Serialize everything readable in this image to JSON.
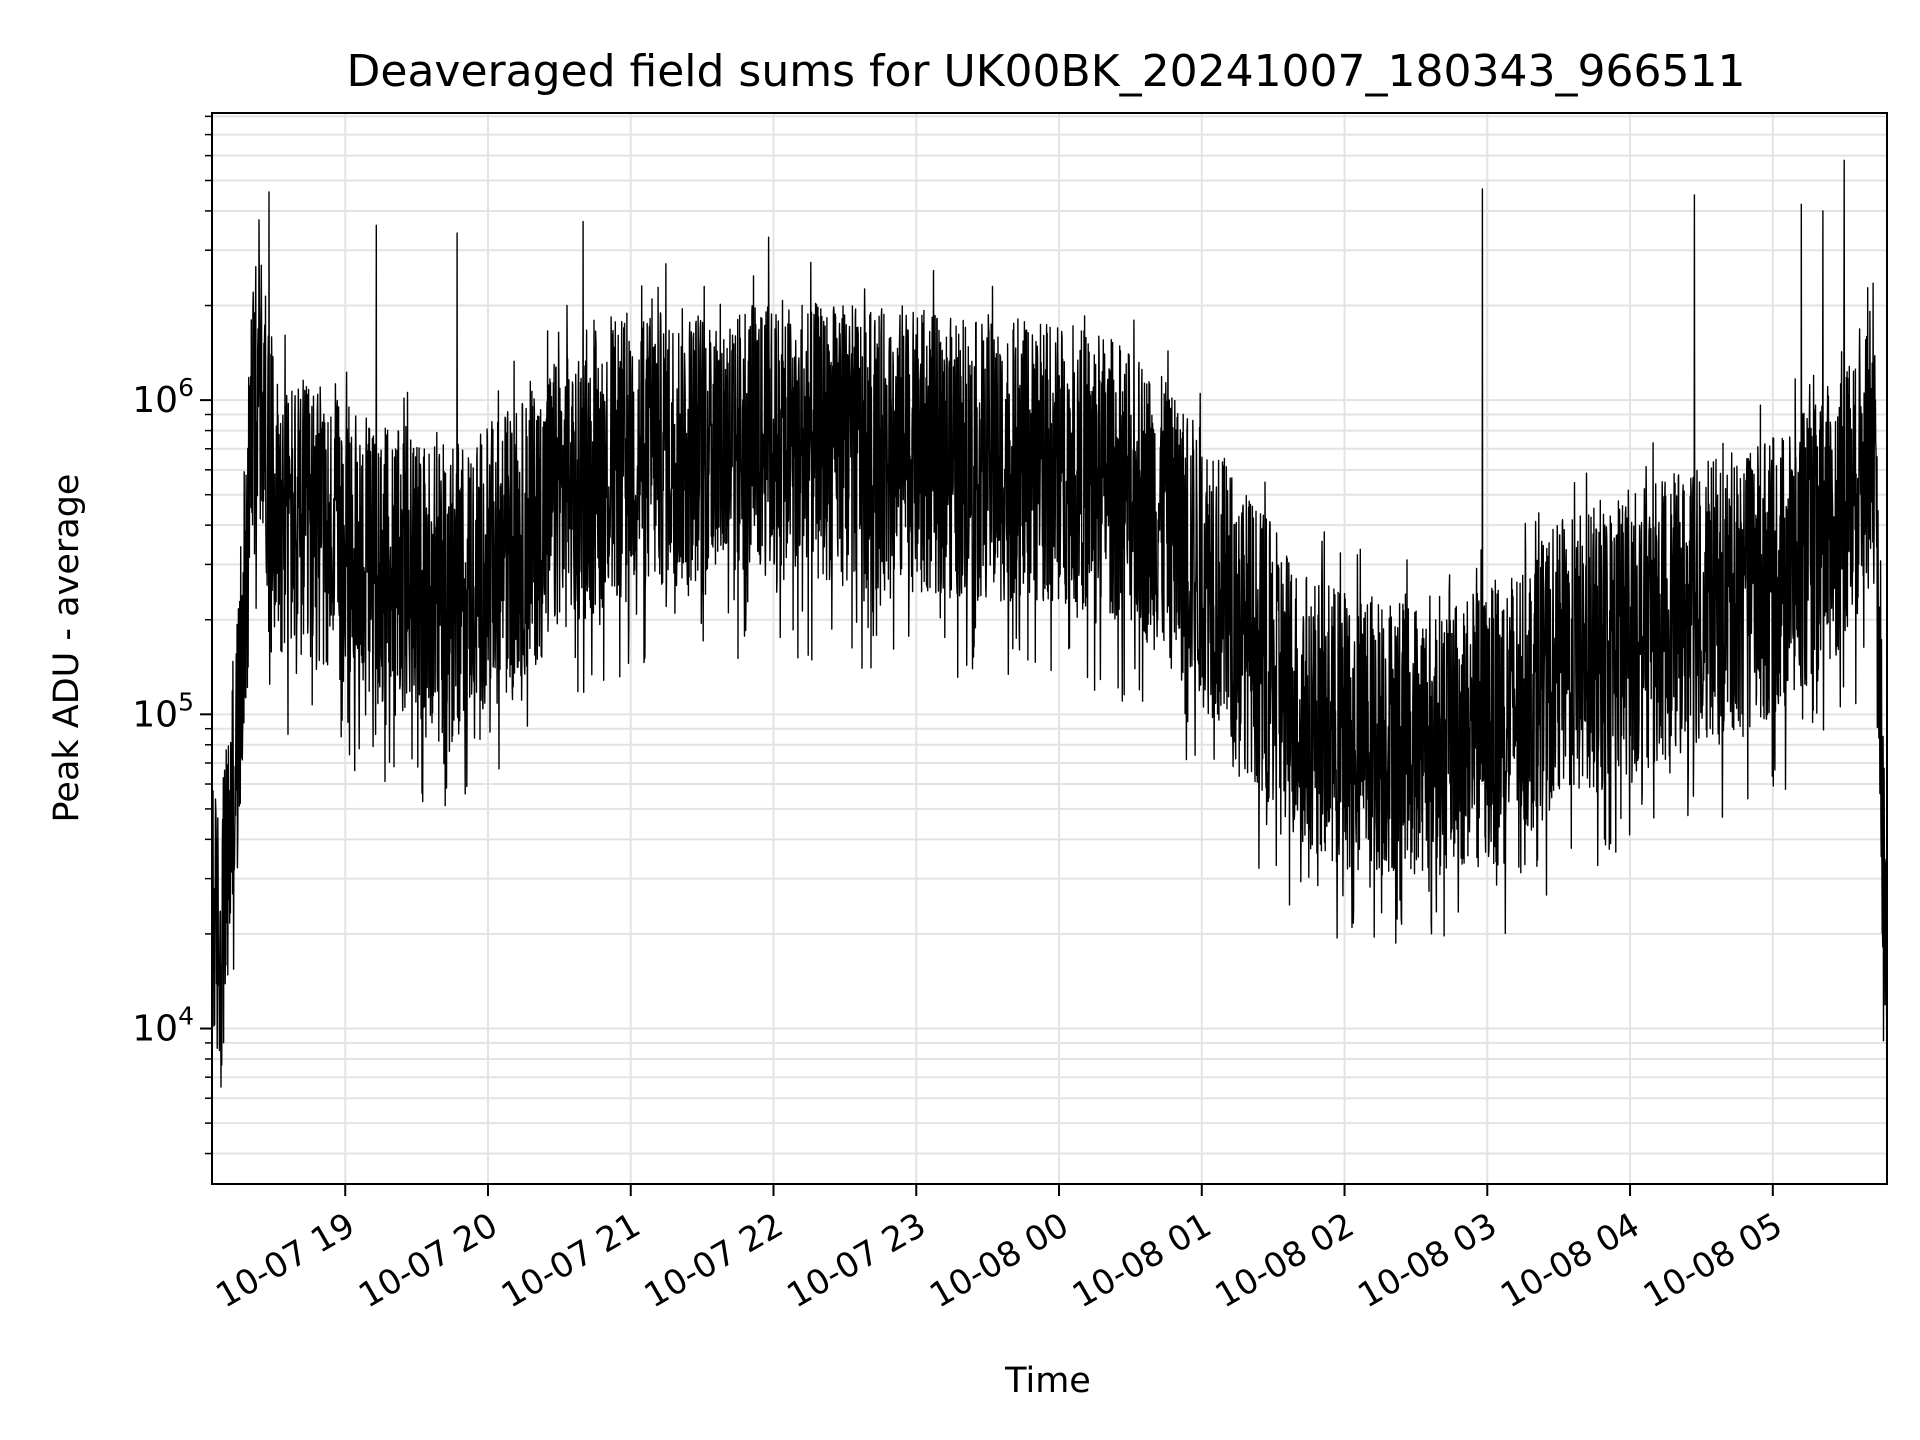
{
  "chart_data": {
    "type": "line",
    "title": "Deaveraged field sums for UK00BK_20241007_180343_966511",
    "xlabel": "Time",
    "ylabel": "Peak ADU - average",
    "yscale": "log",
    "ylim": [
      3200,
      8200000
    ],
    "xlim": [
      "2024-10-07 18:04",
      "2024-10-08 05:48"
    ],
    "grid": true,
    "grid_minor": true,
    "x_ticks": [
      {
        "value": "2024-10-07 19:00",
        "label": "10-07 19"
      },
      {
        "value": "2024-10-07 20:00",
        "label": "10-07 20"
      },
      {
        "value": "2024-10-07 21:00",
        "label": "10-07 21"
      },
      {
        "value": "2024-10-07 22:00",
        "label": "10-07 22"
      },
      {
        "value": "2024-10-07 23:00",
        "label": "10-07 23"
      },
      {
        "value": "2024-10-08 00:00",
        "label": "10-08 00"
      },
      {
        "value": "2024-10-08 01:00",
        "label": "10-08 01"
      },
      {
        "value": "2024-10-08 02:00",
        "label": "10-08 02"
      },
      {
        "value": "2024-10-08 03:00",
        "label": "10-08 03"
      },
      {
        "value": "2024-10-08 04:00",
        "label": "10-08 04"
      },
      {
        "value": "2024-10-08 05:00",
        "label": "10-08 05"
      }
    ],
    "y_ticks": [
      {
        "value": 10000,
        "base": "10",
        "exp": "4"
      },
      {
        "value": 100000,
        "base": "10",
        "exp": "5"
      },
      {
        "value": 1000000,
        "base": "10",
        "exp": "6"
      }
    ],
    "series": [
      {
        "color": "#000000",
        "x": [
          "2024-10-07 18:04",
          "2024-10-07 18:08",
          "2024-10-07 18:12",
          "2024-10-07 18:16",
          "2024-10-07 18:20",
          "2024-10-07 18:24",
          "2024-10-07 18:28",
          "2024-10-07 18:32",
          "2024-10-07 18:40",
          "2024-10-07 18:50",
          "2024-10-07 19:00",
          "2024-10-07 19:15",
          "2024-10-07 19:30",
          "2024-10-07 19:45",
          "2024-10-07 20:00",
          "2024-10-07 20:15",
          "2024-10-07 20:30",
          "2024-10-07 20:45",
          "2024-10-07 21:00",
          "2024-10-07 21:30",
          "2024-10-07 22:00",
          "2024-10-07 22:30",
          "2024-10-07 23:00",
          "2024-10-07 23:30",
          "2024-10-08 00:00",
          "2024-10-08 00:20",
          "2024-10-08 00:40",
          "2024-10-08 01:00",
          "2024-10-08 01:20",
          "2024-10-08 01:40",
          "2024-10-08 02:00",
          "2024-10-08 02:30",
          "2024-10-08 03:00",
          "2024-10-08 03:30",
          "2024-10-08 04:00",
          "2024-10-08 04:30",
          "2024-10-08 05:00",
          "2024-10-08 05:20",
          "2024-10-08 05:35",
          "2024-10-08 05:42",
          "2024-10-08 05:46",
          "2024-10-08 05:48"
        ],
        "values": [
          25000,
          20000,
          50000,
          120000,
          800000,
          1300000,
          700000,
          500000,
          450000,
          420000,
          380000,
          330000,
          300000,
          280000,
          330000,
          400000,
          550000,
          650000,
          750000,
          800000,
          820000,
          800000,
          750000,
          700000,
          700000,
          650000,
          500000,
          330000,
          200000,
          120000,
          100000,
          95000,
          100000,
          160000,
          200000,
          250000,
          300000,
          400000,
          600000,
          1100000,
          60000,
          12000
        ],
        "spike_x": [
          "2024-10-07 18:28",
          "2024-10-07 19:13",
          "2024-10-07 19:47",
          "2024-10-07 20:40",
          "2024-10-07 21:09",
          "2024-10-07 21:58",
          "2024-10-07 22:12",
          "2024-10-07 23:32",
          "2024-10-08 02:58",
          "2024-10-08 04:27",
          "2024-10-08 05:12",
          "2024-10-08 05:21",
          "2024-10-08 05:30"
        ],
        "spike_values": [
          4600000,
          3600000,
          3400000,
          3700000,
          2100000,
          3300000,
          2000000,
          2300000,
          4700000,
          4500000,
          4200000,
          4000000,
          5800000
        ],
        "min_values": [
          12000,
          70000,
          58000,
          57000,
          80000,
          70000,
          62000,
          50000,
          30000,
          31000,
          40000,
          55000,
          8000
        ]
      }
    ]
  }
}
